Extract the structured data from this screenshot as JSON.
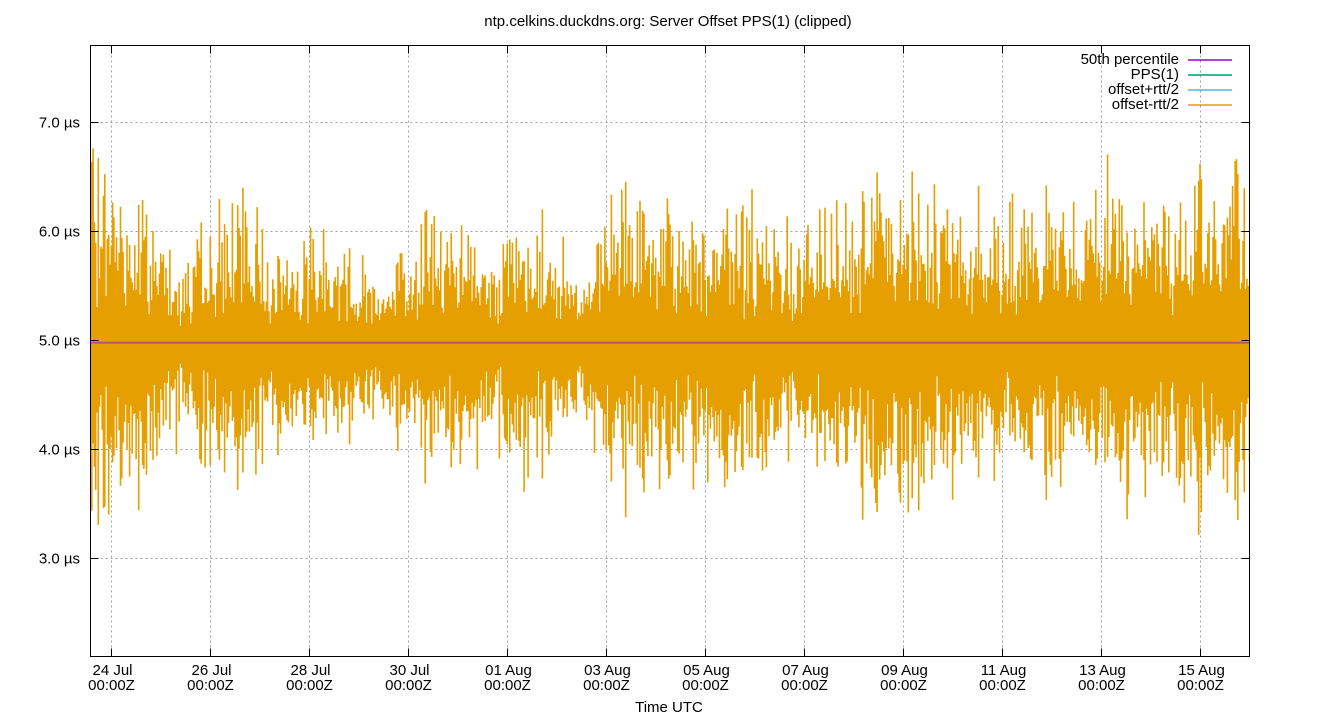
{
  "chart_data": {
    "type": "line",
    "title": "ntp.celkins.duckdns.org: Server Offset PPS(1) (clipped)",
    "xlabel": "Time UTC",
    "ylabel": "",
    "x_start": "2023-07-23T14:00Z",
    "x_end": "2023-08-16T00:00Z",
    "ylim": [
      2.1,
      7.7
    ],
    "y_unit": "µs",
    "y_ticks": [
      {
        "value": 3.0,
        "label": "3.0 µs"
      },
      {
        "value": 4.0,
        "label": "4.0 µs"
      },
      {
        "value": 5.0,
        "label": "5.0 µs"
      },
      {
        "value": 6.0,
        "label": "6.0 µs"
      },
      {
        "value": 7.0,
        "label": "7.0 µs"
      }
    ],
    "x_ticks": [
      {
        "date": "2023-07-24T00:00Z",
        "label_top": "24 Jul",
        "label_bottom": "00:00Z"
      },
      {
        "date": "2023-07-26T00:00Z",
        "label_top": "26 Jul",
        "label_bottom": "00:00Z"
      },
      {
        "date": "2023-07-28T00:00Z",
        "label_top": "28 Jul",
        "label_bottom": "00:00Z"
      },
      {
        "date": "2023-07-30T00:00Z",
        "label_top": "30 Jul",
        "label_bottom": "00:00Z"
      },
      {
        "date": "2023-08-01T00:00Z",
        "label_top": "01 Aug",
        "label_bottom": "00:00Z"
      },
      {
        "date": "2023-08-03T00:00Z",
        "label_top": "03 Aug",
        "label_bottom": "00:00Z"
      },
      {
        "date": "2023-08-05T00:00Z",
        "label_top": "05 Aug",
        "label_bottom": "00:00Z"
      },
      {
        "date": "2023-08-07T00:00Z",
        "label_top": "07 Aug",
        "label_bottom": "00:00Z"
      },
      {
        "date": "2023-08-09T00:00Z",
        "label_top": "09 Aug",
        "label_bottom": "00:00Z"
      },
      {
        "date": "2023-08-11T00:00Z",
        "label_top": "11 Aug",
        "label_bottom": "00:00Z"
      },
      {
        "date": "2023-08-13T00:00Z",
        "label_top": "13 Aug",
        "label_bottom": "00:00Z"
      },
      {
        "date": "2023-08-15T00:00Z",
        "label_top": "15 Aug",
        "label_bottom": "00:00Z"
      }
    ],
    "grid": true,
    "legend_position": "top-right",
    "series": [
      {
        "name": "50th percentile",
        "color": "#9400d3",
        "values": [
          4.98
        ]
      },
      {
        "name": "PPS(1)",
        "color": "#009e73",
        "values": [
          4.97
        ]
      },
      {
        "name": "offset+rtt/2",
        "color": "#56b4e9",
        "values": []
      },
      {
        "name": "offset-rtt/2",
        "color": "#e69f00",
        "values": []
      }
    ],
    "band": {
      "series_name": "offset-rtt/2",
      "center": 4.95,
      "samples_per_day": 38,
      "seed": 7,
      "amplitude_envelope": [
        {
          "date": "2023-07-23T14:00Z",
          "amp": 1.5
        },
        {
          "date": "2023-07-24T12:00Z",
          "amp": 1.2
        },
        {
          "date": "2023-07-25T12:00Z",
          "amp": 0.7
        },
        {
          "date": "2023-07-26T12:00Z",
          "amp": 1.2
        },
        {
          "date": "2023-07-27T12:00Z",
          "amp": 0.8
        },
        {
          "date": "2023-07-28T06:00Z",
          "amp": 0.9
        },
        {
          "date": "2023-07-29T12:00Z",
          "amp": 0.6
        },
        {
          "date": "2023-07-30T12:00Z",
          "amp": 1.1
        },
        {
          "date": "2023-07-31T12:00Z",
          "amp": 0.8
        },
        {
          "date": "2023-08-01T12:00Z",
          "amp": 1.0
        },
        {
          "date": "2023-08-02T12:00Z",
          "amp": 0.7
        },
        {
          "date": "2023-08-03T12:00Z",
          "amp": 1.2
        },
        {
          "date": "2023-08-04T12:00Z",
          "amp": 1.0
        },
        {
          "date": "2023-08-05T12:00Z",
          "amp": 1.2
        },
        {
          "date": "2023-08-06T12:00Z",
          "amp": 0.9
        },
        {
          "date": "2023-08-07T12:00Z",
          "amp": 1.0
        },
        {
          "date": "2023-08-08T12:00Z",
          "amp": 1.4
        },
        {
          "date": "2023-08-09T12:00Z",
          "amp": 1.3
        },
        {
          "date": "2023-08-10T12:00Z",
          "amp": 1.1
        },
        {
          "date": "2023-08-11T12:00Z",
          "amp": 1.0
        },
        {
          "date": "2023-08-12T12:00Z",
          "amp": 1.2
        },
        {
          "date": "2023-08-13T12:00Z",
          "amp": 1.3
        },
        {
          "date": "2023-08-14T12:00Z",
          "amp": 1.1
        },
        {
          "date": "2023-08-15T12:00Z",
          "amp": 1.6
        },
        {
          "date": "2023-08-16T00:00Z",
          "amp": 1.2
        }
      ]
    }
  }
}
